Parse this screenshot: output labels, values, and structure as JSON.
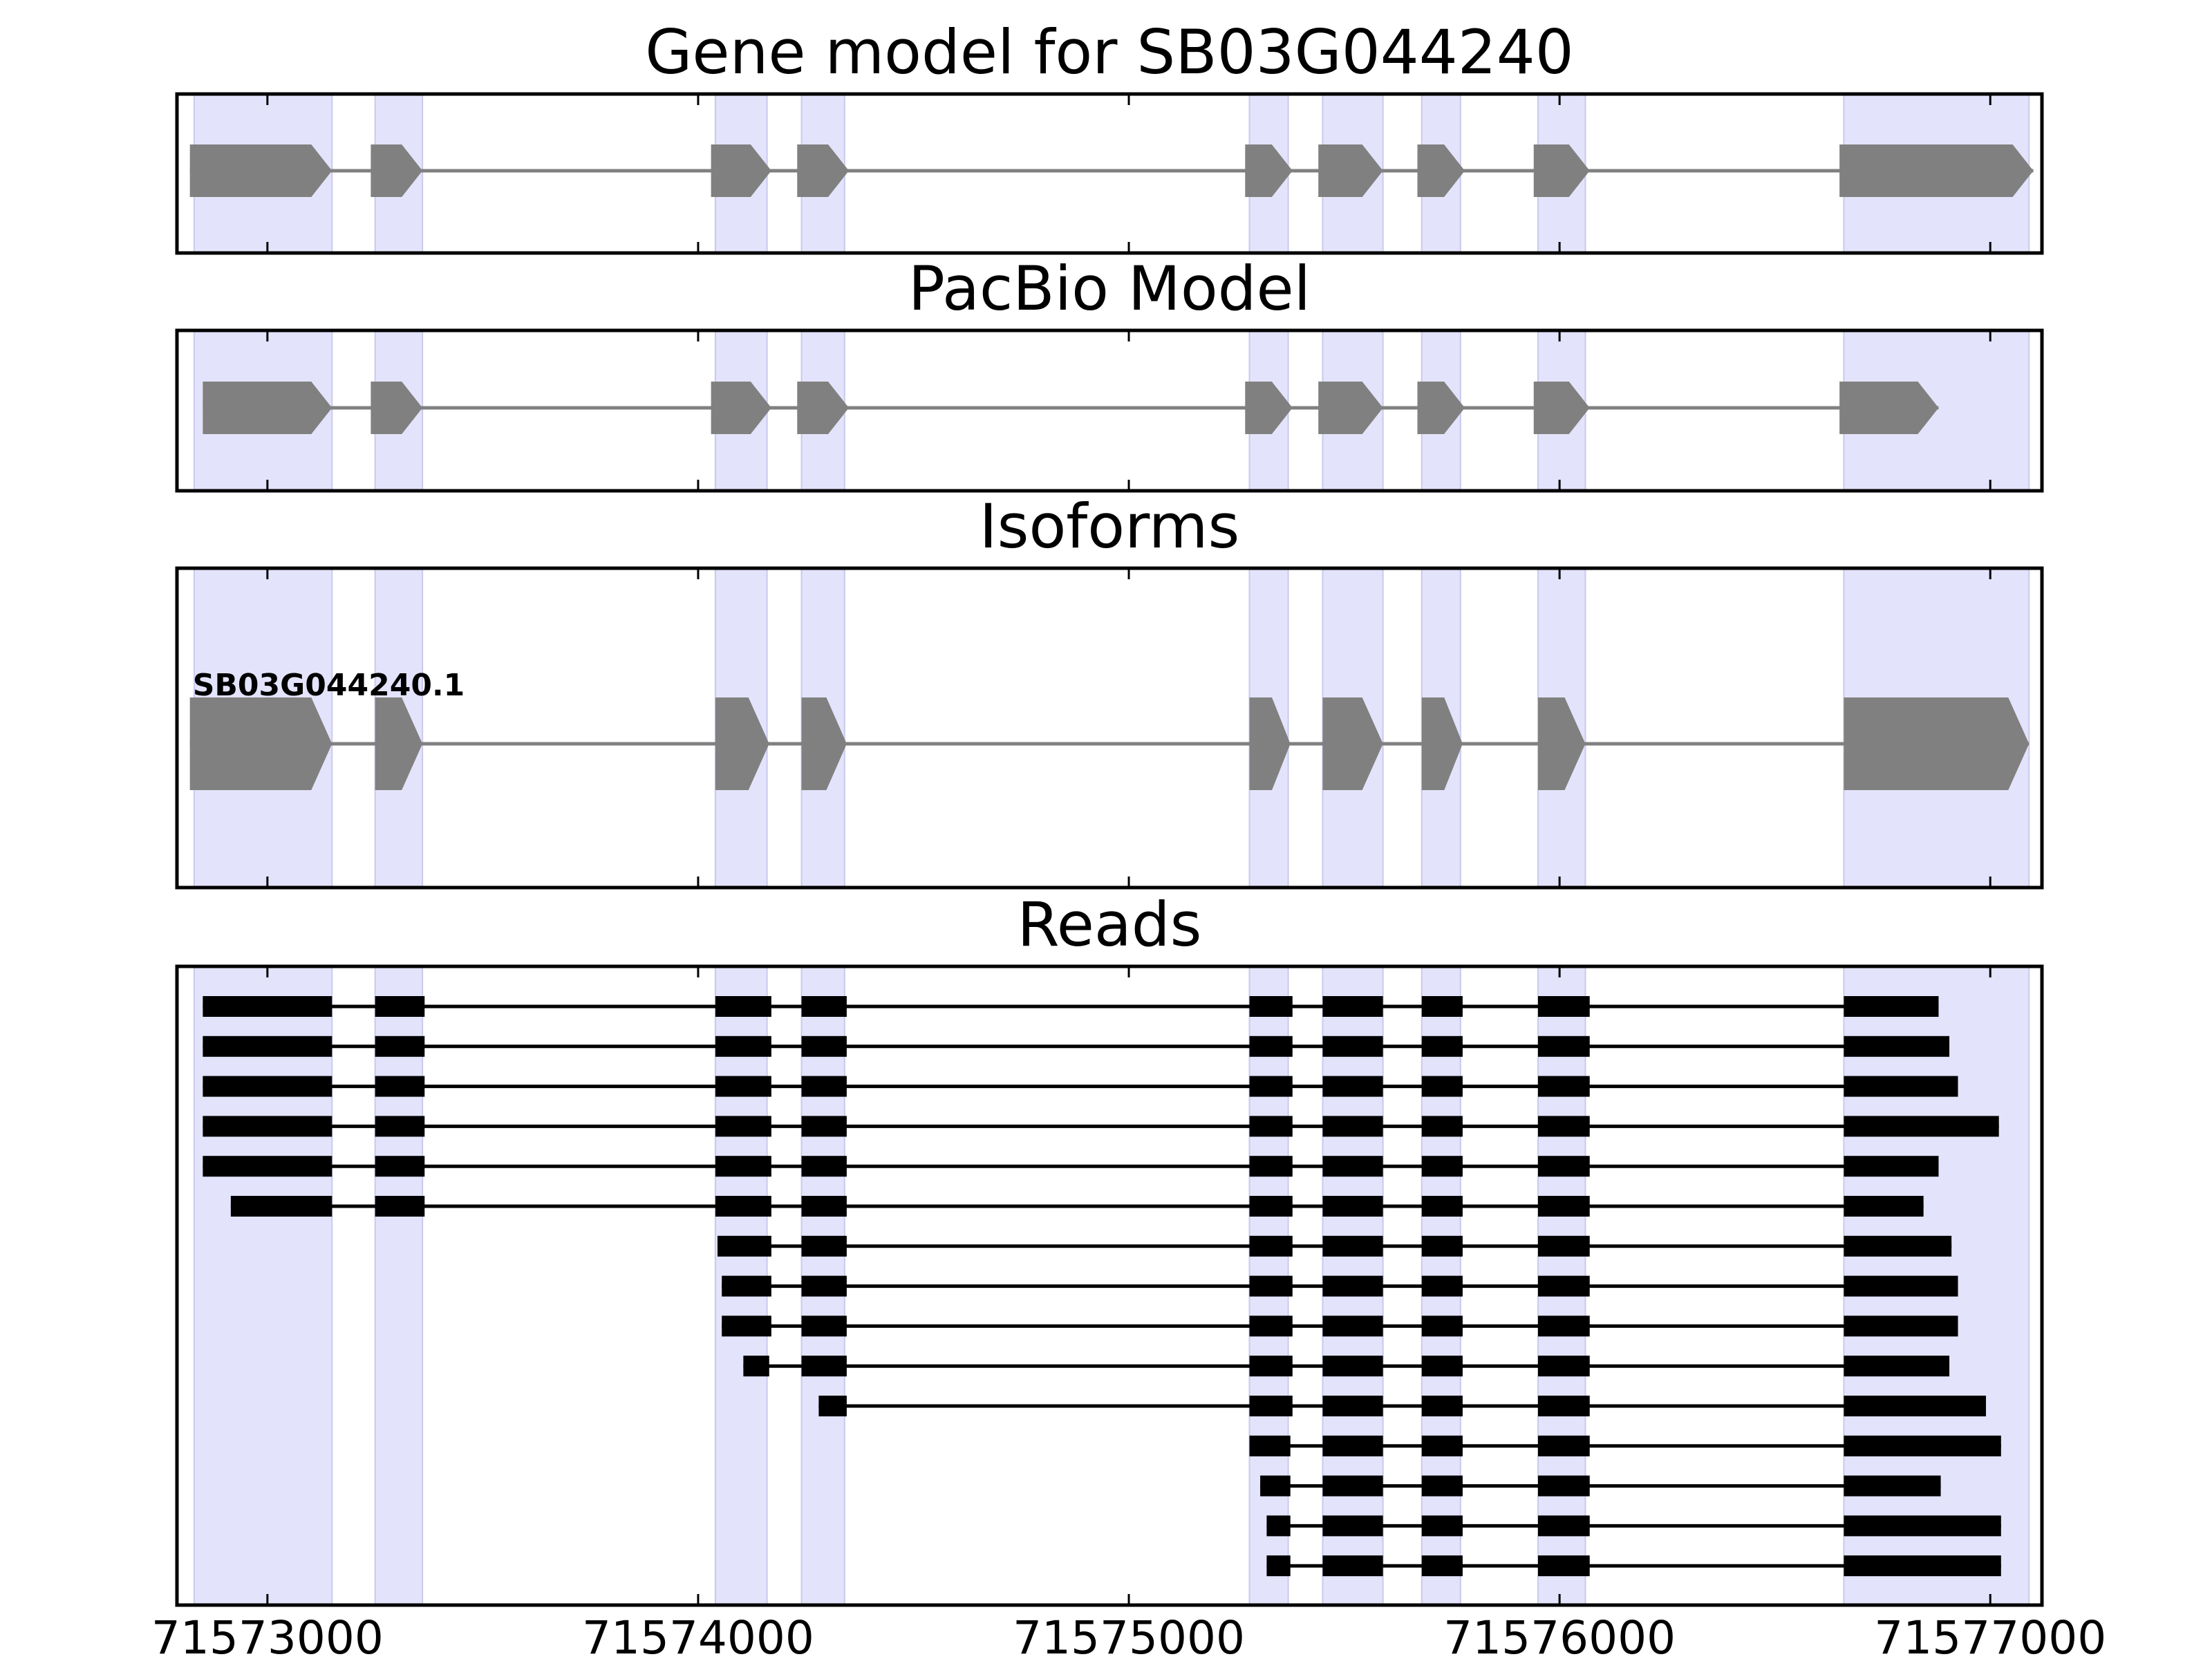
{
  "chart_data": {
    "type": "gene-model-diagram",
    "xlim": [
      71572790,
      71577120
    ],
    "x_ticks": [
      {
        "value": 71573000,
        "label": "71573000"
      },
      {
        "value": 71574000,
        "label": "71574000"
      },
      {
        "value": 71575000,
        "label": "71575000"
      },
      {
        "value": 71576000,
        "label": "71576000"
      },
      {
        "value": 71577000,
        "label": "71577000"
      }
    ],
    "highlight_regions": [
      [
        71572830,
        71573150
      ],
      [
        71573250,
        71573360
      ],
      [
        71574040,
        71574160
      ],
      [
        71574240,
        71574340
      ],
      [
        71575280,
        71575370
      ],
      [
        71575450,
        71575590
      ],
      [
        71575680,
        71575770
      ],
      [
        71575950,
        71576060
      ],
      [
        71576660,
        71577090
      ]
    ],
    "colors": {
      "highlight": "#e3e3fb",
      "highlight_edge": "#c9c9ee",
      "exon_model": "#808080",
      "intron_model": "#808080",
      "read": "#000000",
      "frame": "#000000"
    },
    "panels": [
      {
        "title": "Gene model for SB03G044240",
        "kind": "model",
        "strand": "+",
        "exons": [
          [
            71572820,
            71573150
          ],
          [
            71573240,
            71573360
          ],
          [
            71574030,
            71574170
          ],
          [
            71574230,
            71574350
          ],
          [
            71575270,
            71575380
          ],
          [
            71575440,
            71575590
          ],
          [
            71575670,
            71575780
          ],
          [
            71575940,
            71576070
          ],
          [
            71576650,
            71577100
          ]
        ]
      },
      {
        "title": "PacBio Model",
        "kind": "model",
        "strand": "+",
        "exons": [
          [
            71572850,
            71573150
          ],
          [
            71573240,
            71573360
          ],
          [
            71574030,
            71574170
          ],
          [
            71574230,
            71574350
          ],
          [
            71575270,
            71575380
          ],
          [
            71575440,
            71575590
          ],
          [
            71575670,
            71575780
          ],
          [
            71575940,
            71576070
          ],
          [
            71576650,
            71576880
          ]
        ]
      },
      {
        "title": "Isoforms",
        "kind": "isoform",
        "strand": "+",
        "isoforms": [
          {
            "name": "SB03G044240.1",
            "exons": [
              [
                71572820,
                71573150
              ],
              [
                71573250,
                71573360
              ],
              [
                71574040,
                71574165
              ],
              [
                71574240,
                71574345
              ],
              [
                71575280,
                71575375
              ],
              [
                71575450,
                71575590
              ],
              [
                71575680,
                71575775
              ],
              [
                71575950,
                71576060
              ],
              [
                71576660,
                71577090
              ]
            ]
          }
        ]
      },
      {
        "title": "Reads",
        "kind": "reads",
        "reads": [
          [
            [
              71572850,
              71573150
            ],
            [
              71573250,
              71573365
            ],
            [
              71574040,
              71574170
            ],
            [
              71574240,
              71574345
            ],
            [
              71575280,
              71575380
            ],
            [
              71575450,
              71575590
            ],
            [
              71575680,
              71575775
            ],
            [
              71575950,
              71576070
            ],
            [
              71576660,
              71576880
            ]
          ],
          [
            [
              71572850,
              71573150
            ],
            [
              71573250,
              71573365
            ],
            [
              71574040,
              71574170
            ],
            [
              71574240,
              71574345
            ],
            [
              71575280,
              71575380
            ],
            [
              71575450,
              71575590
            ],
            [
              71575680,
              71575775
            ],
            [
              71575950,
              71576070
            ],
            [
              71576660,
              71576905
            ]
          ],
          [
            [
              71572850,
              71573150
            ],
            [
              71573250,
              71573365
            ],
            [
              71574040,
              71574170
            ],
            [
              71574240,
              71574345
            ],
            [
              71575280,
              71575380
            ],
            [
              71575450,
              71575590
            ],
            [
              71575680,
              71575775
            ],
            [
              71575950,
              71576070
            ],
            [
              71576660,
              71576925
            ]
          ],
          [
            [
              71572850,
              71573150
            ],
            [
              71573250,
              71573365
            ],
            [
              71574040,
              71574170
            ],
            [
              71574240,
              71574345
            ],
            [
              71575280,
              71575380
            ],
            [
              71575450,
              71575590
            ],
            [
              71575680,
              71575775
            ],
            [
              71575950,
              71576070
            ],
            [
              71576660,
              71577020
            ]
          ],
          [
            [
              71572850,
              71573150
            ],
            [
              71573250,
              71573365
            ],
            [
              71574040,
              71574170
            ],
            [
              71574240,
              71574345
            ],
            [
              71575280,
              71575380
            ],
            [
              71575450,
              71575590
            ],
            [
              71575680,
              71575775
            ],
            [
              71575950,
              71576070
            ],
            [
              71576660,
              71576880
            ]
          ],
          [
            [
              71572915,
              71573150
            ],
            [
              71573250,
              71573365
            ],
            [
              71574040,
              71574170
            ],
            [
              71574240,
              71574345
            ],
            [
              71575280,
              71575380
            ],
            [
              71575450,
              71575590
            ],
            [
              71575680,
              71575775
            ],
            [
              71575950,
              71576070
            ],
            [
              71576660,
              71576845
            ]
          ],
          [
            [
              71574045,
              71574170
            ],
            [
              71574240,
              71574345
            ],
            [
              71575280,
              71575380
            ],
            [
              71575450,
              71575590
            ],
            [
              71575680,
              71575775
            ],
            [
              71575950,
              71576070
            ],
            [
              71576660,
              71576910
            ]
          ],
          [
            [
              71574055,
              71574170
            ],
            [
              71574240,
              71574345
            ],
            [
              71575280,
              71575380
            ],
            [
              71575450,
              71575590
            ],
            [
              71575680,
              71575775
            ],
            [
              71575950,
              71576070
            ],
            [
              71576660,
              71576925
            ]
          ],
          [
            [
              71574055,
              71574170
            ],
            [
              71574240,
              71574345
            ],
            [
              71575280,
              71575380
            ],
            [
              71575450,
              71575590
            ],
            [
              71575680,
              71575775
            ],
            [
              71575950,
              71576070
            ],
            [
              71576660,
              71576925
            ]
          ],
          [
            [
              71574105,
              71574165
            ],
            [
              71574240,
              71574345
            ],
            [
              71575280,
              71575380
            ],
            [
              71575450,
              71575590
            ],
            [
              71575680,
              71575775
            ],
            [
              71575950,
              71576070
            ],
            [
              71576660,
              71576905
            ]
          ],
          [
            [
              71574280,
              71574345
            ],
            [
              71575280,
              71575380
            ],
            [
              71575450,
              71575590
            ],
            [
              71575680,
              71575775
            ],
            [
              71575950,
              71576070
            ],
            [
              71576660,
              71576990
            ]
          ],
          [
            [
              71575280,
              71575375
            ],
            [
              71575450,
              71575590
            ],
            [
              71575680,
              71575775
            ],
            [
              71575950,
              71576070
            ],
            [
              71576660,
              71577025
            ]
          ],
          [
            [
              71575305,
              71575375
            ],
            [
              71575450,
              71575590
            ],
            [
              71575680,
              71575775
            ],
            [
              71575950,
              71576070
            ],
            [
              71576660,
              71576885
            ]
          ],
          [
            [
              71575320,
              71575375
            ],
            [
              71575450,
              71575590
            ],
            [
              71575680,
              71575775
            ],
            [
              71575950,
              71576070
            ],
            [
              71576660,
              71577025
            ]
          ],
          [
            [
              71575320,
              71575375
            ],
            [
              71575450,
              71575590
            ],
            [
              71575680,
              71575775
            ],
            [
              71575950,
              71576070
            ],
            [
              71576660,
              71577025
            ]
          ]
        ]
      }
    ]
  }
}
